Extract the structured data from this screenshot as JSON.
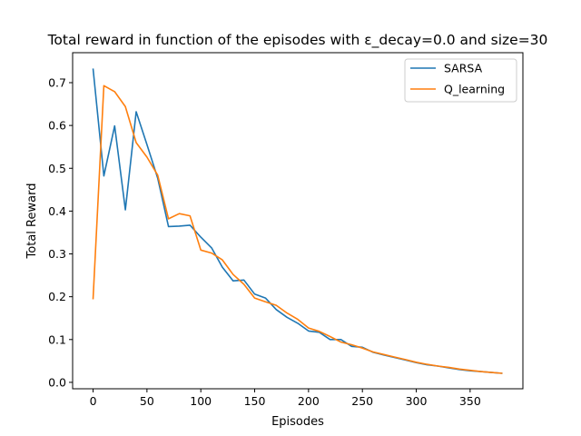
{
  "chart_data": {
    "type": "line",
    "title": "Total reward in function of the episodes with ε_decay=0.0 and size=30",
    "xlabel": "Episodes",
    "ylabel": "Total Reward",
    "xlim": [
      -19,
      399
    ],
    "ylim": [
      -0.015,
      0.77
    ],
    "xticks": [
      0,
      50,
      100,
      150,
      200,
      250,
      300,
      350
    ],
    "yticks": [
      0.0,
      0.1,
      0.2,
      0.3,
      0.4,
      0.5,
      0.6,
      0.7
    ],
    "grid": false,
    "legend_position": "top-right",
    "series": [
      {
        "name": "SARSA",
        "color": "#1f77b4",
        "x": [
          0,
          10,
          20,
          30,
          40,
          50,
          60,
          70,
          80,
          90,
          100,
          110,
          120,
          130,
          140,
          150,
          160,
          170,
          180,
          190,
          200,
          210,
          220,
          230,
          240,
          250,
          260,
          270,
          280,
          290,
          300,
          310,
          320,
          330,
          340,
          350,
          360,
          370,
          380
        ],
        "y": [
          0.733,
          0.482,
          0.599,
          0.403,
          0.632,
          0.555,
          0.477,
          0.364,
          0.365,
          0.367,
          0.339,
          0.314,
          0.269,
          0.237,
          0.239,
          0.206,
          0.197,
          0.17,
          0.152,
          0.138,
          0.12,
          0.117,
          0.1,
          0.1,
          0.084,
          0.082,
          0.07,
          0.064,
          0.058,
          0.052,
          0.046,
          0.041,
          0.038,
          0.034,
          0.03,
          0.027,
          0.025,
          0.023,
          0.021
        ]
      },
      {
        "name": "Q_learning",
        "color": "#ff7f0e",
        "x": [
          0,
          10,
          20,
          30,
          40,
          50,
          60,
          70,
          80,
          90,
          100,
          110,
          120,
          130,
          140,
          150,
          160,
          170,
          180,
          190,
          200,
          210,
          220,
          230,
          240,
          250,
          260,
          270,
          280,
          290,
          300,
          310,
          320,
          330,
          340,
          350,
          360,
          370,
          380
        ],
        "y": [
          0.194,
          0.693,
          0.679,
          0.644,
          0.56,
          0.526,
          0.484,
          0.382,
          0.394,
          0.389,
          0.309,
          0.302,
          0.286,
          0.252,
          0.229,
          0.197,
          0.188,
          0.18,
          0.162,
          0.147,
          0.127,
          0.119,
          0.107,
          0.094,
          0.088,
          0.08,
          0.071,
          0.065,
          0.059,
          0.053,
          0.047,
          0.042,
          0.038,
          0.035,
          0.031,
          0.028,
          0.025,
          0.023,
          0.021
        ]
      }
    ]
  }
}
